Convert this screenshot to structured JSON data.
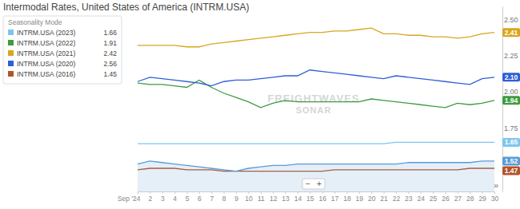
{
  "chart_data": {
    "type": "line",
    "title": "Intermodal Rates, United States of America (INTRM.USA)",
    "legend_title": "Seasonality Mode",
    "watermark": [
      "FREIGHTWAVES",
      "SONAR"
    ],
    "controls": [
      "−",
      "+",
      "»"
    ],
    "categories": [
      "Sep '24",
      "2",
      "3",
      "4",
      "5",
      "6",
      "7",
      "8",
      "9",
      "10",
      "11",
      "12",
      "13",
      "14",
      "15",
      "16",
      "17",
      "18",
      "19",
      "20",
      "21",
      "22",
      "23",
      "24",
      "25",
      "26",
      "27",
      "28",
      "29",
      "30"
    ],
    "ylim": [
      1.31,
      2.59
    ],
    "yticks": [
      {
        "value": 1.75,
        "label": "1.75"
      },
      {
        "value": 2.0,
        "label": "2.00"
      },
      {
        "value": 2.25,
        "label": "2.25"
      },
      {
        "value": 2.5,
        "label": "2.50"
      }
    ],
    "grid": false,
    "legend": "upper left",
    "series": [
      {
        "name": "INTRM.USA (2023)",
        "legend_value": 1.66,
        "color": "#7cc6ee",
        "values": [
          1.64,
          1.64,
          1.64,
          1.64,
          1.64,
          1.64,
          1.64,
          1.64,
          1.64,
          1.64,
          1.64,
          1.64,
          1.64,
          1.64,
          1.64,
          1.64,
          1.64,
          1.64,
          1.64,
          1.64,
          1.64,
          1.65,
          1.65,
          1.65,
          1.65,
          1.65,
          1.65,
          1.65,
          1.65,
          1.65
        ],
        "value_labels": [
          null,
          null,
          null,
          null,
          null,
          null,
          null,
          null,
          null,
          null,
          null,
          null,
          null,
          null,
          null,
          null,
          null,
          null,
          null,
          null,
          null,
          null,
          null,
          null,
          null,
          null,
          null,
          null,
          null,
          "1.65"
        ]
      },
      {
        "name": "INTRM.USA (2022)",
        "legend_value": 1.91,
        "color": "#3f9b3f",
        "values": [
          2.06,
          2.05,
          2.05,
          2.04,
          2.03,
          2.08,
          2.03,
          1.99,
          1.96,
          1.93,
          1.89,
          1.92,
          1.94,
          1.93,
          1.93,
          1.93,
          1.93,
          1.93,
          1.93,
          1.95,
          1.94,
          1.93,
          1.92,
          1.91,
          1.9,
          1.89,
          1.92,
          1.91,
          1.92,
          1.94
        ],
        "value_labels": [
          null,
          null,
          null,
          null,
          null,
          null,
          null,
          null,
          null,
          null,
          null,
          null,
          null,
          null,
          null,
          null,
          null,
          null,
          null,
          null,
          null,
          null,
          null,
          null,
          null,
          null,
          null,
          null,
          null,
          "1.94"
        ]
      },
      {
        "name": "INTRM.USA (2021)",
        "legend_value": 2.42,
        "color": "#d9a520",
        "values": [
          2.32,
          2.32,
          2.32,
          2.32,
          2.31,
          2.31,
          2.33,
          2.34,
          2.35,
          2.36,
          2.37,
          2.38,
          2.39,
          2.4,
          2.41,
          2.41,
          2.42,
          2.42,
          2.43,
          2.44,
          2.4,
          2.4,
          2.39,
          2.39,
          2.38,
          2.38,
          2.37,
          2.38,
          2.4,
          2.41
        ],
        "value_labels": [
          null,
          null,
          null,
          null,
          null,
          null,
          null,
          null,
          null,
          null,
          null,
          null,
          null,
          null,
          null,
          null,
          null,
          null,
          null,
          null,
          null,
          null,
          null,
          null,
          null,
          null,
          null,
          null,
          null,
          "2.41"
        ]
      },
      {
        "name": "INTRM.USA (2020)",
        "legend_value": 2.56,
        "color": "#2e5fd6",
        "values": [
          2.07,
          2.1,
          2.09,
          2.08,
          2.07,
          2.06,
          2.04,
          2.07,
          2.08,
          2.08,
          2.09,
          2.1,
          2.11,
          2.11,
          2.15,
          2.14,
          2.13,
          2.12,
          2.11,
          2.1,
          2.09,
          2.11,
          2.1,
          2.09,
          2.08,
          2.07,
          2.06,
          2.05,
          2.09,
          2.1
        ],
        "value_labels": [
          null,
          null,
          null,
          null,
          null,
          null,
          null,
          null,
          null,
          null,
          null,
          null,
          null,
          null,
          null,
          null,
          null,
          null,
          null,
          null,
          null,
          null,
          null,
          null,
          null,
          null,
          null,
          null,
          null,
          "2.10"
        ]
      },
      {
        "name": "INTRM.USA (2016)",
        "legend_value": 1.45,
        "color": "#b4532a",
        "values": [
          1.46,
          1.47,
          1.47,
          1.47,
          1.46,
          1.46,
          1.46,
          1.45,
          1.45,
          1.45,
          1.45,
          1.45,
          1.45,
          1.45,
          1.45,
          1.45,
          1.46,
          1.46,
          1.46,
          1.46,
          1.46,
          1.46,
          1.46,
          1.46,
          1.46,
          1.46,
          1.46,
          1.47,
          1.47,
          1.47
        ],
        "value_labels": [
          null,
          null,
          null,
          null,
          null,
          null,
          null,
          null,
          null,
          null,
          null,
          null,
          null,
          null,
          null,
          null,
          null,
          null,
          null,
          null,
          null,
          null,
          null,
          null,
          null,
          null,
          null,
          null,
          null,
          "1.47"
        ]
      },
      {
        "type": "area",
        "color": "#5b9bd5",
        "values": [
          1.5,
          1.52,
          1.51,
          1.5,
          1.49,
          1.48,
          1.47,
          1.46,
          1.45,
          1.47,
          1.48,
          1.49,
          1.49,
          1.5,
          1.5,
          1.5,
          1.5,
          1.5,
          1.5,
          1.5,
          1.5,
          1.5,
          1.51,
          1.51,
          1.51,
          1.51,
          1.51,
          1.51,
          1.52,
          1.52
        ],
        "value_labels": [
          null,
          null,
          null,
          null,
          null,
          null,
          null,
          null,
          null,
          null,
          null,
          null,
          null,
          null,
          null,
          null,
          null,
          null,
          null,
          null,
          null,
          null,
          null,
          null,
          null,
          null,
          null,
          null,
          null,
          "1.52"
        ]
      }
    ]
  }
}
